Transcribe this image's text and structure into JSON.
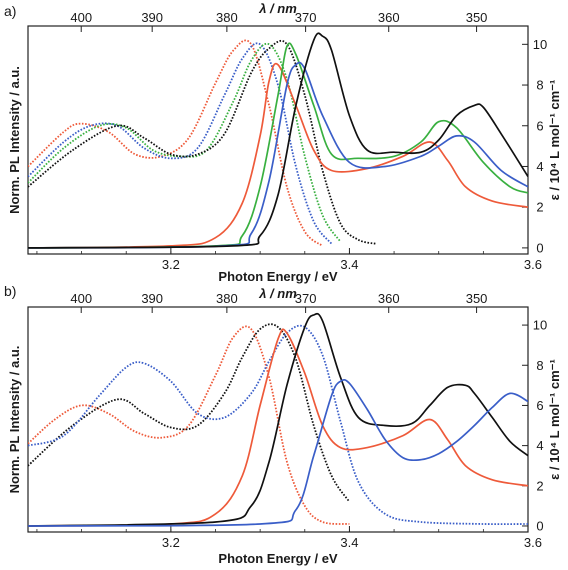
{
  "chart_data": [
    {
      "type": "line",
      "panel_label": "a)",
      "xlabel": "Photon Energy / eV",
      "top_xlabel": "λ / nm",
      "ylabel_left": "Norm. PL Intensity / a.u.",
      "ylabel_right": "ε / 10⁴ L mol⁻¹ cm⁻¹",
      "xlim": [
        3.04,
        3.6
      ],
      "ylim": [
        -0.3,
        10.9
      ],
      "x_ticks": [
        "3.2",
        "3.4",
        "3.6"
      ],
      "x_tick_values": [
        3.2,
        3.4,
        3.6
      ],
      "top_ticks": [
        "400",
        "390",
        "380",
        "370",
        "360",
        "350"
      ],
      "top_tick_values": [
        400,
        390,
        380,
        370,
        360,
        350
      ],
      "right_ticks": [
        "0",
        "2",
        "4",
        "6",
        "8",
        "10"
      ],
      "right_tick_values": [
        0,
        2,
        4,
        6,
        8,
        10
      ],
      "series": [
        {
          "color": "#ee5a3a",
          "style": "dotted",
          "x": [
            3.04,
            3.08,
            3.1,
            3.13,
            3.16,
            3.19,
            3.22,
            3.25,
            3.27,
            3.29,
            3.31,
            3.33,
            3.35,
            3.37
          ],
          "values": [
            4.0,
            5.7,
            6.1,
            5.7,
            4.6,
            4.5,
            5.4,
            8.1,
            9.7,
            10.0,
            7.0,
            3.0,
            0.8,
            0.1
          ]
        },
        {
          "color": "#3a5ec8",
          "style": "dotted",
          "x": [
            3.04,
            3.08,
            3.11,
            3.14,
            3.17,
            3.2,
            3.23,
            3.26,
            3.28,
            3.3,
            3.32,
            3.34,
            3.36,
            3.38
          ],
          "values": [
            3.5,
            5.2,
            6.0,
            6.0,
            4.9,
            4.4,
            4.9,
            7.5,
            9.3,
            10.0,
            8.0,
            4.0,
            1.3,
            0.2
          ]
        },
        {
          "color": "#39b040",
          "style": "dotted",
          "x": [
            3.04,
            3.08,
            3.12,
            3.15,
            3.18,
            3.21,
            3.24,
            3.27,
            3.29,
            3.31,
            3.33,
            3.35,
            3.37,
            3.39
          ],
          "values": [
            3.2,
            4.9,
            6.0,
            5.9,
            4.8,
            4.5,
            4.8,
            7.2,
            9.2,
            10.0,
            8.3,
            4.5,
            1.6,
            0.3
          ]
        },
        {
          "color": "#111111",
          "style": "dotted",
          "x": [
            3.04,
            3.09,
            3.14,
            3.17,
            3.2,
            3.23,
            3.26,
            3.29,
            3.31,
            3.33,
            3.35,
            3.37,
            3.39,
            3.41,
            3.43
          ],
          "values": [
            3.0,
            4.8,
            6.0,
            5.4,
            4.6,
            4.6,
            5.6,
            8.6,
            9.8,
            10.0,
            7.5,
            3.8,
            1.2,
            0.4,
            0.2
          ]
        },
        {
          "color": "#ee5a3a",
          "style": "solid",
          "x": [
            3.04,
            3.2,
            3.25,
            3.28,
            3.3,
            3.31,
            3.32,
            3.34,
            3.36,
            3.38,
            3.42,
            3.46,
            3.49,
            3.51,
            3.53,
            3.56,
            3.6
          ],
          "values": [
            0.0,
            0.1,
            0.5,
            2.2,
            5.5,
            8.2,
            9.0,
            7.0,
            4.8,
            3.8,
            3.9,
            4.5,
            5.2,
            4.3,
            3.0,
            2.3,
            2.0
          ]
        },
        {
          "color": "#39b040",
          "style": "solid",
          "x": [
            3.04,
            3.25,
            3.28,
            3.3,
            3.32,
            3.33,
            3.34,
            3.36,
            3.38,
            3.41,
            3.45,
            3.48,
            3.5,
            3.52,
            3.55,
            3.58,
            3.6
          ],
          "values": [
            0.0,
            0.1,
            0.6,
            3.0,
            7.5,
            9.9,
            9.5,
            7.0,
            4.6,
            4.4,
            4.5,
            5.2,
            6.2,
            5.9,
            4.2,
            3.0,
            2.7
          ]
        },
        {
          "color": "#3a5ec8",
          "style": "solid",
          "x": [
            3.04,
            3.26,
            3.29,
            3.31,
            3.33,
            3.34,
            3.35,
            3.37,
            3.4,
            3.44,
            3.48,
            3.5,
            3.52,
            3.54,
            3.57,
            3.6
          ],
          "values": [
            0.0,
            0.1,
            0.7,
            3.3,
            8.0,
            9.0,
            8.8,
            6.5,
            4.2,
            4.0,
            4.5,
            5.0,
            5.5,
            5.2,
            3.8,
            3.0
          ]
        },
        {
          "color": "#111111",
          "style": "solid",
          "x": [
            3.04,
            3.27,
            3.3,
            3.32,
            3.34,
            3.36,
            3.37,
            3.38,
            3.4,
            3.42,
            3.45,
            3.48,
            3.5,
            3.52,
            3.54,
            3.55,
            3.57,
            3.6
          ],
          "values": [
            0.0,
            0.1,
            0.6,
            2.6,
            7.0,
            10.2,
            10.4,
            9.7,
            6.5,
            4.8,
            4.7,
            4.7,
            5.3,
            6.5,
            7.0,
            6.9,
            5.6,
            3.5
          ]
        }
      ]
    },
    {
      "type": "line",
      "panel_label": "b)",
      "xlabel": "Photon Energy / eV",
      "top_xlabel": "λ / nm",
      "ylabel_left": "Norm. PL Intensity / a.u.",
      "ylabel_right": "ε / 10⁴ L mol⁻¹ cm⁻¹",
      "xlim": [
        3.04,
        3.6
      ],
      "ylim": [
        -0.3,
        10.9
      ],
      "x_ticks": [
        "3.2",
        "3.4",
        "3.6"
      ],
      "x_tick_values": [
        3.2,
        3.4,
        3.6
      ],
      "top_ticks": [
        "400",
        "390",
        "380",
        "370",
        "360",
        "350"
      ],
      "top_tick_values": [
        400,
        390,
        380,
        370,
        360,
        350
      ],
      "right_ticks": [
        "0",
        "2",
        "4",
        "6",
        "8",
        "10"
      ],
      "right_tick_values": [
        0,
        2,
        4,
        6,
        8,
        10
      ],
      "series": [
        {
          "color": "#ee5a3a",
          "style": "dotted",
          "x": [
            3.04,
            3.07,
            3.1,
            3.13,
            3.16,
            3.19,
            3.22,
            3.25,
            3.27,
            3.29,
            3.31,
            3.33,
            3.35,
            3.37,
            3.4
          ],
          "values": [
            4.1,
            5.3,
            6.0,
            5.6,
            4.7,
            4.4,
            5.0,
            7.5,
            9.4,
            9.8,
            7.4,
            3.2,
            1.0,
            0.2,
            0.1
          ]
        },
        {
          "color": "#111111",
          "style": "dotted",
          "x": [
            3.04,
            3.09,
            3.14,
            3.17,
            3.2,
            3.23,
            3.26,
            3.28,
            3.3,
            3.32,
            3.34,
            3.36,
            3.38,
            3.4
          ],
          "values": [
            3.0,
            5.0,
            6.3,
            5.6,
            4.9,
            5.0,
            6.6,
            8.4,
            9.8,
            9.9,
            8.3,
            5.0,
            2.5,
            1.2
          ]
        },
        {
          "color": "#3a5ec8",
          "style": "dotted",
          "x": [
            3.04,
            3.08,
            3.12,
            3.15,
            3.17,
            3.2,
            3.23,
            3.26,
            3.29,
            3.31,
            3.33,
            3.35,
            3.37,
            3.39,
            3.41,
            3.44,
            3.48,
            3.55,
            3.6
          ],
          "values": [
            4.0,
            4.5,
            6.5,
            7.9,
            8.1,
            7.2,
            5.6,
            5.4,
            6.6,
            8.2,
            9.6,
            9.9,
            8.5,
            5.2,
            2.2,
            0.6,
            0.2,
            0.1,
            0.1
          ]
        },
        {
          "color": "#ee5a3a",
          "style": "solid",
          "x": [
            3.04,
            3.2,
            3.25,
            3.28,
            3.3,
            3.32,
            3.33,
            3.35,
            3.37,
            3.39,
            3.42,
            3.46,
            3.49,
            3.51,
            3.53,
            3.56,
            3.6
          ],
          "values": [
            0.0,
            0.1,
            0.6,
            2.5,
            6.0,
            9.3,
            9.6,
            7.6,
            5.0,
            3.9,
            3.9,
            4.5,
            5.3,
            4.3,
            3.0,
            2.3,
            2.0
          ]
        },
        {
          "color": "#111111",
          "style": "solid",
          "x": [
            3.04,
            3.25,
            3.29,
            3.31,
            3.33,
            3.35,
            3.36,
            3.37,
            3.39,
            3.41,
            3.44,
            3.47,
            3.49,
            3.51,
            3.53,
            3.54,
            3.56,
            3.58,
            3.6
          ],
          "values": [
            0.0,
            0.2,
            1.0,
            3.2,
            7.0,
            9.9,
            10.5,
            10.2,
            7.4,
            5.4,
            5.0,
            5.1,
            6.0,
            6.9,
            7.0,
            6.6,
            5.4,
            4.2,
            3.5
          ]
        },
        {
          "color": "#3a5ec8",
          "style": "solid",
          "x": [
            3.04,
            3.3,
            3.34,
            3.36,
            3.38,
            3.39,
            3.4,
            3.42,
            3.44,
            3.46,
            3.48,
            3.5,
            3.52,
            3.54,
            3.56,
            3.58,
            3.6
          ],
          "values": [
            0.0,
            0.1,
            0.8,
            3.5,
            6.5,
            7.2,
            7.1,
            5.8,
            4.3,
            3.4,
            3.3,
            3.6,
            4.2,
            5.0,
            5.9,
            6.6,
            6.2
          ]
        }
      ]
    }
  ]
}
